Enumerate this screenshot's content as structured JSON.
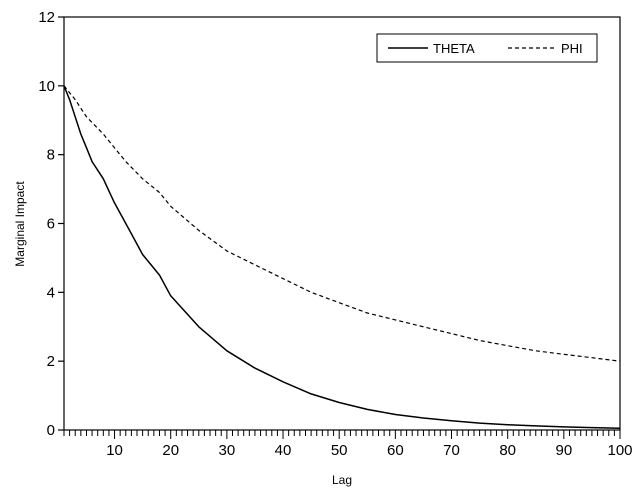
{
  "chart_data": {
    "type": "line",
    "xlabel": "Lag",
    "ylabel": "Marginal Impact",
    "xlim": [
      1,
      100
    ],
    "ylim": [
      0,
      12
    ],
    "x_ticks": [
      10,
      20,
      30,
      40,
      50,
      60,
      70,
      80,
      90,
      100
    ],
    "y_ticks": [
      0,
      2,
      4,
      6,
      8,
      10,
      12
    ],
    "grid": false,
    "legend_position": "top-right",
    "series": [
      {
        "name": "THETA",
        "style": "solid",
        "color": "#000000",
        "x": [
          1,
          2,
          3,
          4,
          5,
          6,
          8,
          10,
          12,
          15,
          18,
          20,
          25,
          30,
          35,
          40,
          45,
          50,
          55,
          60,
          65,
          70,
          75,
          80,
          85,
          90,
          95,
          100
        ],
        "y": [
          10.0,
          9.6,
          9.1,
          8.6,
          8.2,
          7.8,
          7.3,
          6.6,
          6.0,
          5.1,
          4.5,
          3.9,
          3.0,
          2.3,
          1.8,
          1.4,
          1.05,
          0.8,
          0.6,
          0.45,
          0.35,
          0.27,
          0.2,
          0.15,
          0.12,
          0.09,
          0.07,
          0.05
        ]
      },
      {
        "name": "PHI",
        "style": "dashed",
        "color": "#000000",
        "x": [
          1,
          2,
          3,
          5,
          8,
          10,
          12,
          15,
          18,
          20,
          25,
          30,
          35,
          40,
          45,
          50,
          55,
          60,
          65,
          70,
          75,
          80,
          85,
          90,
          95,
          100
        ],
        "y": [
          10.0,
          9.8,
          9.6,
          9.1,
          8.6,
          8.2,
          7.8,
          7.3,
          6.9,
          6.5,
          5.8,
          5.2,
          4.8,
          4.4,
          4.0,
          3.7,
          3.4,
          3.2,
          3.0,
          2.8,
          2.6,
          2.45,
          2.3,
          2.2,
          2.1,
          2.0
        ]
      }
    ]
  }
}
